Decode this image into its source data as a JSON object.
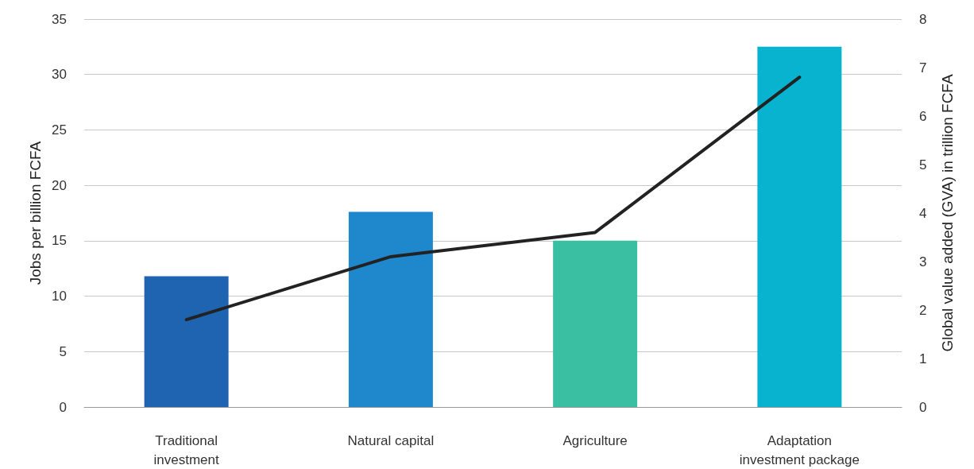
{
  "chart_data": {
    "type": "bar",
    "categories": [
      "Traditional\ninvestment",
      "Natural capital",
      "Agriculture",
      "Adaptation\ninvestment package"
    ],
    "ylabel": "Jobs per billion FCFA",
    "y2label": "Global value added (GVA) in trillion FCFA",
    "ylim": [
      0,
      35
    ],
    "yticks": [
      0,
      5,
      10,
      15,
      20,
      25,
      30,
      35
    ],
    "y2lim": [
      0,
      8
    ],
    "y2ticks": [
      0,
      1,
      2,
      3,
      4,
      5,
      6,
      7,
      8
    ],
    "grid": "y",
    "marker": "none",
    "line_style": "solid",
    "series": [
      {
        "colors": [
          "#1f64b0",
          "#1f88cc",
          "#3bbfa3",
          "#08b3cf"
        ],
        "values": [
          11.8,
          17.6,
          15.0,
          32.5
        ]
      },
      {
        "type": "line",
        "axis": "y2",
        "color": "#222222",
        "values": [
          1.8,
          3.1,
          3.6,
          6.8
        ]
      }
    ]
  }
}
